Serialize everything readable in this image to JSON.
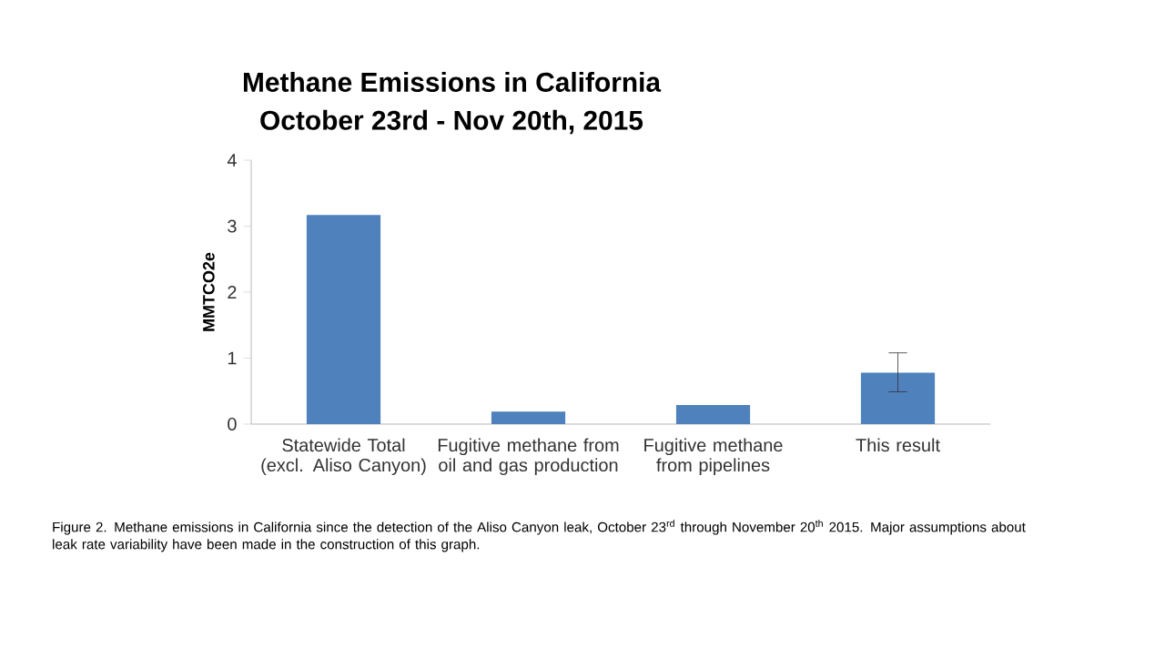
{
  "chart_data": {
    "type": "bar",
    "title": "Methane Emissions in California",
    "subtitle": "October 23rd - Nov 20th, 2015",
    "ylabel": "MMTCO2e",
    "categories": [
      "Statewide Total (excl. Aliso Canyon)",
      "Fugitive methane from oil and gas production",
      "Fugitive methane from pipelines",
      "This result"
    ],
    "values": [
      3.17,
      0.19,
      0.29,
      0.78
    ],
    "errors": [
      null,
      null,
      null,
      [
        0.49,
        1.08
      ]
    ],
    "color": "#4f81bd",
    "ylim": [
      0,
      4
    ],
    "yticks": [
      0,
      1,
      2,
      3,
      4
    ],
    "grid": false,
    "annotations": [
      "Figure 2. Methane emissions in California since the detection of the Aliso Canyon leak, October 23$^{rd}$ through November 20$^{th}$ 2015. Major assumptions about  leak rate variability have been made in the construction of this graph."
    ]
  }
}
